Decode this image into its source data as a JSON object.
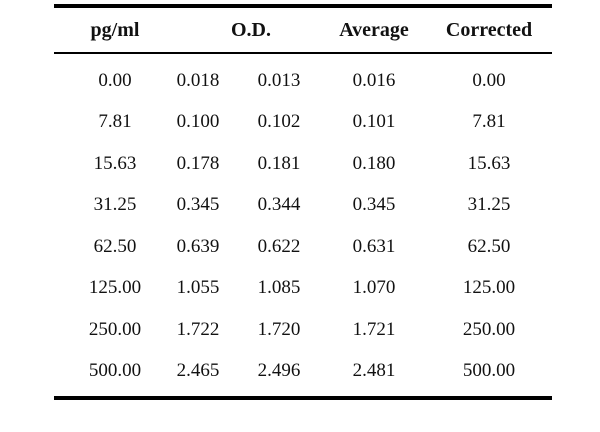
{
  "table": {
    "headers": {
      "pg_ml": "pg/ml",
      "od": "O.D.",
      "average": "Average",
      "corrected": "Corrected"
    },
    "rows": [
      {
        "pg_ml": "0.00",
        "od1": "0.018",
        "od2": "0.013",
        "average": "0.016",
        "corrected": "0.00"
      },
      {
        "pg_ml": "7.81",
        "od1": "0.100",
        "od2": "0.102",
        "average": "0.101",
        "corrected": "7.81"
      },
      {
        "pg_ml": "15.63",
        "od1": "0.178",
        "od2": "0.181",
        "average": "0.180",
        "corrected": "15.63"
      },
      {
        "pg_ml": "31.25",
        "od1": "0.345",
        "od2": "0.344",
        "average": "0.345",
        "corrected": "31.25"
      },
      {
        "pg_ml": "62.50",
        "od1": "0.639",
        "od2": "0.622",
        "average": "0.631",
        "corrected": "62.50"
      },
      {
        "pg_ml": "125.00",
        "od1": "1.055",
        "od2": "1.085",
        "average": "1.070",
        "corrected": "125.00"
      },
      {
        "pg_ml": "250.00",
        "od1": "1.722",
        "od2": "1.720",
        "average": "1.721",
        "corrected": "250.00"
      },
      {
        "pg_ml": "500.00",
        "od1": "2.465",
        "od2": "2.496",
        "average": "2.481",
        "corrected": "500.00"
      }
    ]
  }
}
